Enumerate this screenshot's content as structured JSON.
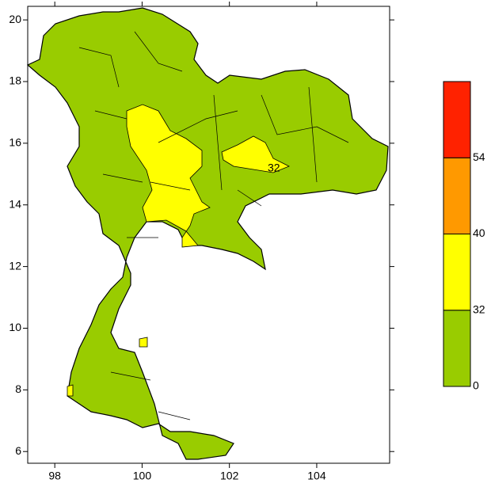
{
  "map": {
    "xlim": [
      97.38,
      105.67
    ],
    "xticks": [
      98,
      100,
      102,
      104
    ],
    "ylim": [
      5.62,
      20.44
    ],
    "yticks": [
      6,
      8,
      10,
      12,
      14,
      16,
      18,
      20
    ],
    "annotations": [
      "32"
    ],
    "colorbar": {
      "levels": [
        0,
        32,
        40,
        54
      ],
      "colors": [
        "#99cc00",
        "#ffff00",
        "#ff9900",
        "#ff2200"
      ]
    }
  }
}
